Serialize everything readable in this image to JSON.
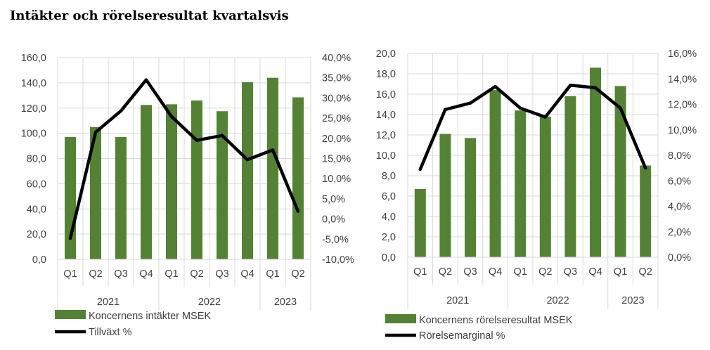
{
  "page": {
    "title": "Intäkter och rörelseresultat kvartalsvis"
  },
  "colors": {
    "bar": "#548235",
    "line": "#000000",
    "grid": "#d9d9d9",
    "axis_text": "#404040"
  },
  "chart_data": [
    {
      "type": "bar+line",
      "title": "",
      "categories": [
        "Q1",
        "Q2",
        "Q3",
        "Q4",
        "Q1",
        "Q2",
        "Q3",
        "Q4",
        "Q1",
        "Q2"
      ],
      "groups": [
        {
          "label": "2021",
          "count": 4
        },
        {
          "label": "2022",
          "count": 4
        },
        {
          "label": "2023",
          "count": 2
        }
      ],
      "series": [
        {
          "name": "Koncernens intäkter MSEK",
          "type": "bar",
          "axis": "left",
          "values": [
            97.0,
            105.0,
            97.0,
            122.5,
            123.0,
            126.0,
            117.5,
            140.5,
            144.0,
            128.5
          ]
        },
        {
          "name": "Tillväxt %",
          "type": "line",
          "axis": "right",
          "values": [
            -4.8,
            21.5,
            26.8,
            34.5,
            25.4,
            19.5,
            20.7,
            14.7,
            17.1,
            1.9
          ]
        }
      ],
      "ylim_left": [
        0,
        160
      ],
      "yticks_left": [
        "0,0",
        "20,0",
        "40,0",
        "60,0",
        "80,0",
        "100,0",
        "120,0",
        "140,0",
        "160,0"
      ],
      "ylim_right": [
        -10,
        40
      ],
      "yticks_right": [
        "-10,0%",
        "-5,0%",
        "0,0%",
        "5,0%",
        "10,0%",
        "15,0%",
        "20,0%",
        "25,0%",
        "30,0%",
        "35,0%",
        "40,0%"
      ],
      "grid": true,
      "legend_position": "bottom-left"
    },
    {
      "type": "bar+line",
      "title": "",
      "categories": [
        "Q1",
        "Q2",
        "Q3",
        "Q4",
        "Q1",
        "Q2",
        "Q3",
        "Q4",
        "Q1",
        "Q2"
      ],
      "groups": [
        {
          "label": "2021",
          "count": 4
        },
        {
          "label": "2022",
          "count": 4
        },
        {
          "label": "2023",
          "count": 2
        }
      ],
      "series": [
        {
          "name": "Koncernens rörelseresultat MSEK",
          "type": "bar",
          "axis": "left",
          "values": [
            6.7,
            12.1,
            11.7,
            16.4,
            14.4,
            13.8,
            15.8,
            18.6,
            16.8,
            9.0
          ]
        },
        {
          "name": "Rörelsemarginal %",
          "type": "line",
          "axis": "right",
          "values": [
            6.9,
            11.6,
            12.1,
            13.4,
            11.7,
            11.0,
            13.5,
            13.3,
            11.7,
            7.0
          ]
        }
      ],
      "ylim_left": [
        0,
        20
      ],
      "yticks_left": [
        "0,0",
        "2,0",
        "4,0",
        "6,0",
        "8,0",
        "10,0",
        "12,0",
        "14,0",
        "16,0",
        "18,0",
        "20,0"
      ],
      "ylim_right": [
        0,
        16
      ],
      "yticks_right": [
        "0,0%",
        "2,0%",
        "4,0%",
        "6,0%",
        "8,0%",
        "10,0%",
        "12,0%",
        "14,0%",
        "16,0%"
      ],
      "grid": true,
      "legend_position": "bottom-left"
    }
  ]
}
